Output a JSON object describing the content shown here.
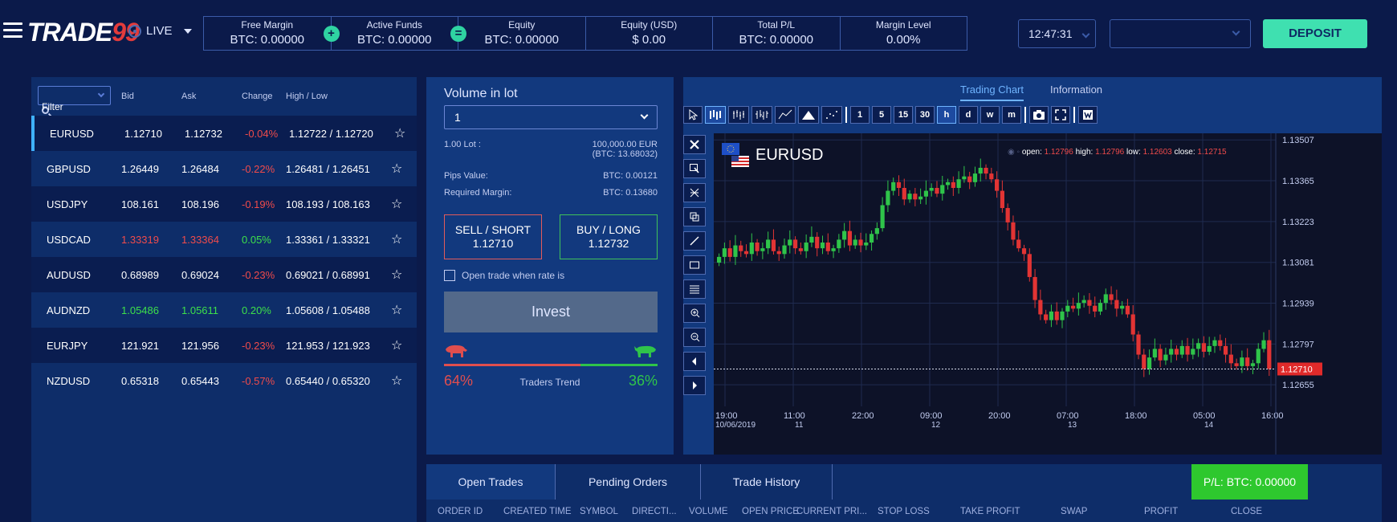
{
  "header": {
    "logo_word": "TRADE",
    "logo_num": "99",
    "mode": "LIVE",
    "stats": [
      {
        "label": "Free Margin",
        "value": "BTC: 0.00000",
        "op": "+"
      },
      {
        "label": "Active Funds",
        "value": "BTC: 0.00000",
        "op": "="
      },
      {
        "label": "Equity",
        "value": "BTC: 0.00000",
        "op": ""
      },
      {
        "label": "Equity (USD)",
        "value": "$ 0.00",
        "op": ""
      },
      {
        "label": "Total P/L",
        "value": "BTC: 0.00000",
        "op": ""
      },
      {
        "label": "Margin Level",
        "value": "0.00%",
        "op": ""
      }
    ],
    "clock": "12:47:31",
    "account_value": "",
    "deposit_label": "DEPOSIT"
  },
  "watchlist": {
    "filter_label": "Filter",
    "columns": {
      "bid": "Bid",
      "ask": "Ask",
      "change": "Change",
      "highlow": "High / Low"
    },
    "rows": [
      {
        "symbol": "EURUSD",
        "bid": "1.12710",
        "ask": "1.12732",
        "change": "-0.04%",
        "highlow": "1.12722 / 1.12720",
        "dir": "down",
        "price_color": "",
        "dark": true,
        "active": true
      },
      {
        "symbol": "GBPUSD",
        "bid": "1.26449",
        "ask": "1.26484",
        "change": "-0.22%",
        "highlow": "1.26481 / 1.26451",
        "dir": "down",
        "price_color": "",
        "dark": false,
        "active": false
      },
      {
        "symbol": "USDJPY",
        "bid": "108.161",
        "ask": "108.196",
        "change": "-0.19%",
        "highlow": "108.193 / 108.163",
        "dir": "down",
        "price_color": "",
        "dark": true,
        "active": false
      },
      {
        "symbol": "USDCAD",
        "bid": "1.33319",
        "ask": "1.33364",
        "change": "0.05%",
        "highlow": "1.33361 / 1.33321",
        "dir": "up",
        "price_color": "red",
        "dark": false,
        "active": false
      },
      {
        "symbol": "AUDUSD",
        "bid": "0.68989",
        "ask": "0.69024",
        "change": "-0.23%",
        "highlow": "0.69021 / 0.68991",
        "dir": "down",
        "price_color": "",
        "dark": true,
        "active": false
      },
      {
        "symbol": "AUDNZD",
        "bid": "1.05486",
        "ask": "1.05611",
        "change": "0.20%",
        "highlow": "1.05608 / 1.05488",
        "dir": "up",
        "price_color": "green",
        "dark": false,
        "active": false
      },
      {
        "symbol": "EURJPY",
        "bid": "121.921",
        "ask": "121.956",
        "change": "-0.23%",
        "highlow": "121.953 / 121.923",
        "dir": "down",
        "price_color": "",
        "dark": true,
        "active": false
      },
      {
        "symbol": "NZDUSD",
        "bid": "0.65318",
        "ask": "0.65443",
        "change": "-0.57%",
        "highlow": "0.65440 / 0.65320",
        "dir": "down",
        "price_color": "",
        "dark": false,
        "active": false
      }
    ]
  },
  "order": {
    "title": "Volume in lot",
    "lot_value": "1",
    "lot_label": "1.00 Lot :",
    "lot_value_text": "100,000.00 EUR",
    "lot_btc": "(BTC: 13.68032)",
    "pips_label": "Pips Value:",
    "pips_value": "BTC: 0.00121",
    "margin_label": "Required Margin:",
    "margin_value": "BTC: 0.13680",
    "sell_label": "SELL / SHORT",
    "sell_price": "1.12710",
    "buy_label": "BUY / LONG",
    "buy_price": "1.12732",
    "open_when_rate": "Open trade when rate is",
    "invest_label": "Invest",
    "sell_pct": "64%",
    "buy_pct": "36%",
    "buy_fraction": 0.36,
    "trend_label": "Traders Trend"
  },
  "chart_tabs": {
    "chart": "Trading Chart",
    "info": "Information"
  },
  "toolbar": {
    "timeframes": [
      "1",
      "5",
      "15",
      "30",
      "h",
      "d",
      "w",
      "m"
    ],
    "selected_timeframe": "h"
  },
  "chart_data": {
    "type": "candlestick",
    "symbol": "EURUSD",
    "ohlc": {
      "open_label": "open:",
      "open": "1.12796",
      "high_label": "high:",
      "high": "1.12796",
      "low_label": "low:",
      "low": "1.12603",
      "close_label": "close:",
      "close": "1.12715"
    },
    "current_price": "1.12710",
    "y_ticks": [
      "1.13507",
      "1.13365",
      "1.13223",
      "1.13081",
      "1.12939",
      "1.12797",
      "1.12655"
    ],
    "ylim": [
      1.1258,
      1.1353
    ],
    "x_ticks": [
      {
        "time": "19:00",
        "date": "10/06/2019"
      },
      {
        "time": "11:00",
        "date": "11"
      },
      {
        "time": "22:00",
        "date": ""
      },
      {
        "time": "09:00",
        "date": "12"
      },
      {
        "time": "20:00",
        "date": ""
      },
      {
        "time": "07:00",
        "date": "13"
      },
      {
        "time": "18:00",
        "date": ""
      },
      {
        "time": "05:00",
        "date": "14"
      },
      {
        "time": "16:00",
        "date": ""
      }
    ],
    "closes": [
      1.131,
      1.1313,
      1.131,
      1.1314,
      1.1312,
      1.1311,
      1.1315,
      1.1312,
      1.1313,
      1.1316,
      1.1312,
      1.1311,
      1.1314,
      1.1316,
      1.1313,
      1.1312,
      1.1315,
      1.1317,
      1.1313,
      1.1315,
      1.1312,
      1.1313,
      1.1316,
      1.1319,
      1.1314,
      1.1316,
      1.1314,
      1.1315,
      1.1318,
      1.132,
      1.1328,
      1.1333,
      1.1336,
      1.1334,
      1.133,
      1.1332,
      1.133,
      1.1331,
      1.1333,
      1.1334,
      1.1332,
      1.1335,
      1.1336,
      1.1334,
      1.1337,
      1.1338,
      1.1336,
      1.1339,
      1.1341,
      1.1339,
      1.1337,
      1.1333,
      1.1327,
      1.1322,
      1.1316,
      1.1313,
      1.1311,
      1.1303,
      1.1295,
      1.129,
      1.1288,
      1.1291,
      1.1288,
      1.1291,
      1.1293,
      1.1292,
      1.1294,
      1.1295,
      1.1293,
      1.1291,
      1.1294,
      1.1297,
      1.1295,
      1.1292,
      1.1293,
      1.129,
      1.1283,
      1.1276,
      1.1271,
      1.1275,
      1.1278,
      1.1274,
      1.1276,
      1.1278,
      1.1276,
      1.1279,
      1.1276,
      1.1278,
      1.128,
      1.1277,
      1.1279,
      1.1281,
      1.1279,
      1.1276,
      1.1273,
      1.1272,
      1.1275,
      1.1272,
      1.1273,
      1.1278,
      1.1281,
      1.1271
    ]
  },
  "trades": {
    "tabs": [
      "Open Trades",
      "Pending Orders",
      "Trade History"
    ],
    "pl": "P/L:  BTC: 0.00000",
    "columns": [
      "ORDER ID",
      "CREATED TIME",
      "SYMBOL",
      "DIRECTI...",
      "VOLUME",
      "OPEN PRICE",
      "CURRENT PRI...",
      "STOP LOSS",
      "TAKE PROFIT",
      "SWAP",
      "PROFIT",
      "CLOSE"
    ]
  }
}
